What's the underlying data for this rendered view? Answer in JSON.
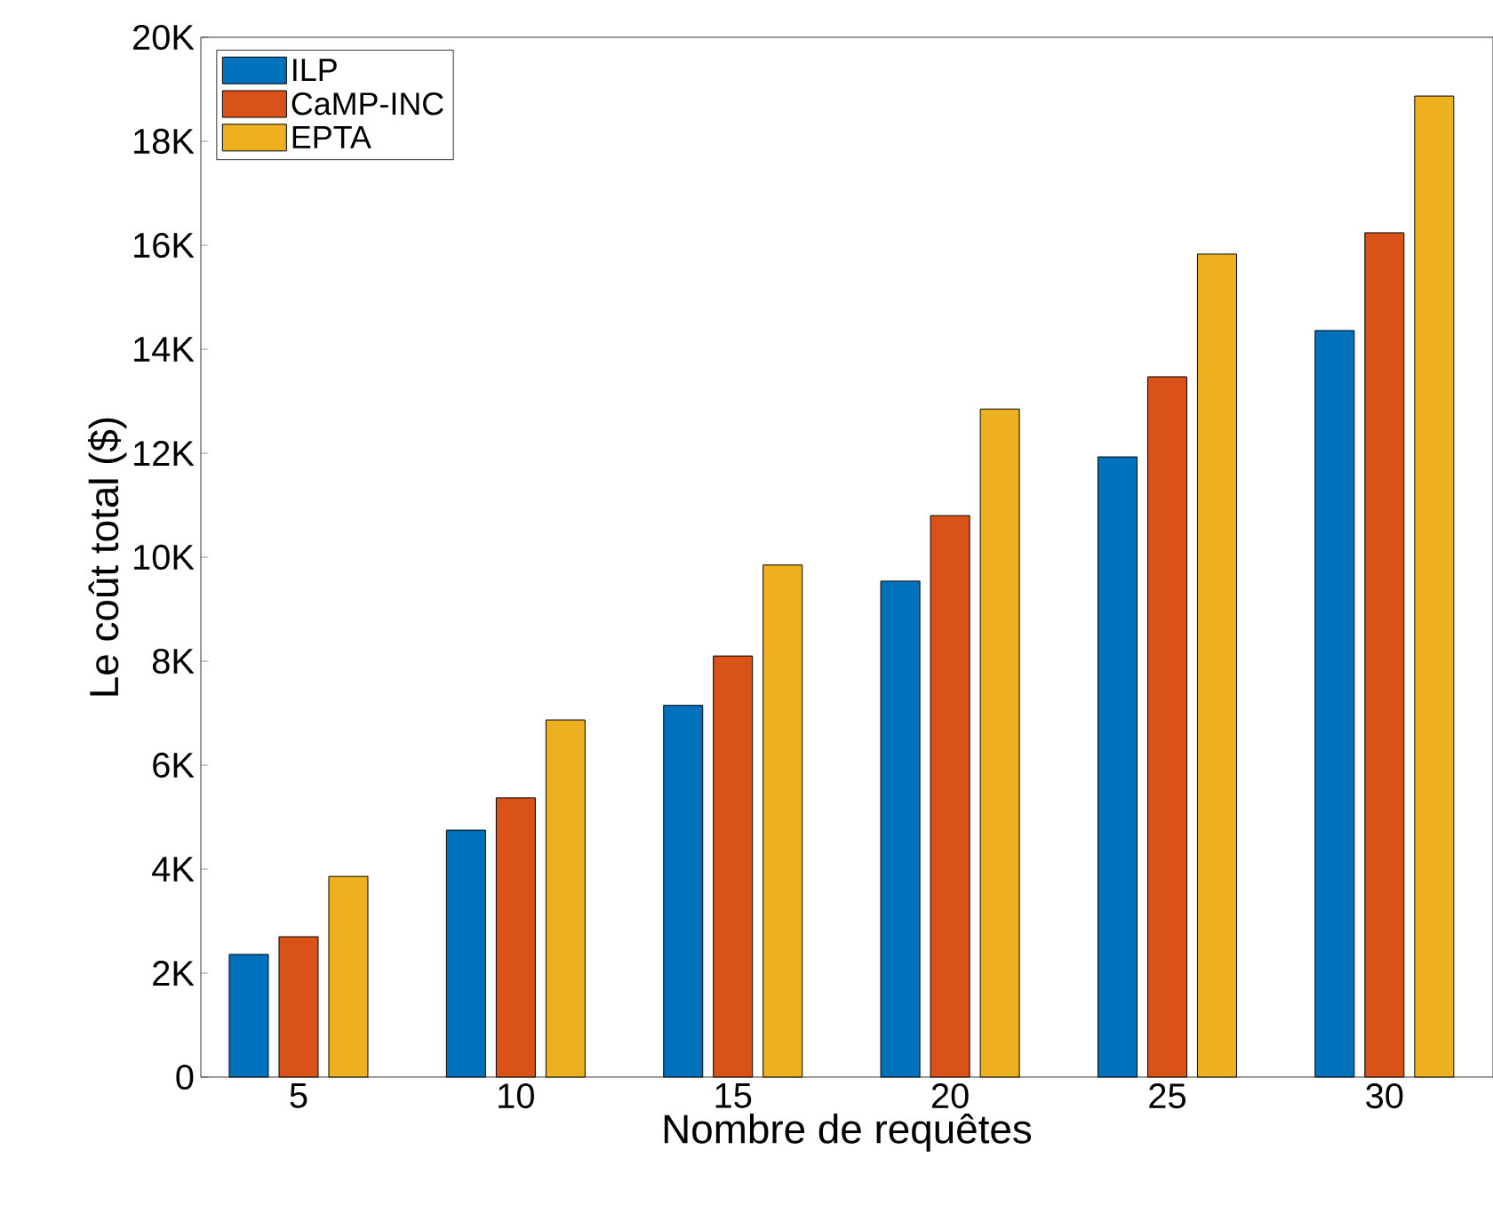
{
  "chart_data": {
    "type": "bar",
    "xlabel": "Nombre de requêtes",
    "ylabel": "Le coût total ($)",
    "categories": [
      "5",
      "10",
      "15",
      "20",
      "25",
      "30"
    ],
    "series": [
      {
        "name": "ILP",
        "color": "#0072bd",
        "values": [
          2360,
          4750,
          7150,
          9540,
          11930,
          14360
        ]
      },
      {
        "name": "CaMP-INC",
        "color": "#d95319",
        "values": [
          2700,
          5370,
          8100,
          10800,
          13470,
          16240
        ]
      },
      {
        "name": "EPTA",
        "color": "#edb120",
        "values": [
          3860,
          6870,
          9850,
          12850,
          15830,
          18870
        ]
      }
    ],
    "ylim": [
      0,
      20000
    ],
    "yticks": [
      0,
      {
        "value": 2000,
        "label": "2K"
      },
      {
        "value": 4000,
        "label": "4K"
      },
      {
        "value": 6000,
        "label": "6K"
      },
      {
        "value": 8000,
        "label": "8K"
      },
      {
        "value": 10000,
        "label": "10K"
      },
      {
        "value": 12000,
        "label": "12K"
      },
      {
        "value": 14000,
        "label": "14K"
      },
      {
        "value": 16000,
        "label": "16K"
      },
      {
        "value": 18000,
        "label": "18K"
      },
      {
        "value": 20000,
        "label": "20K"
      }
    ],
    "legend": "top left",
    "grid": false
  }
}
